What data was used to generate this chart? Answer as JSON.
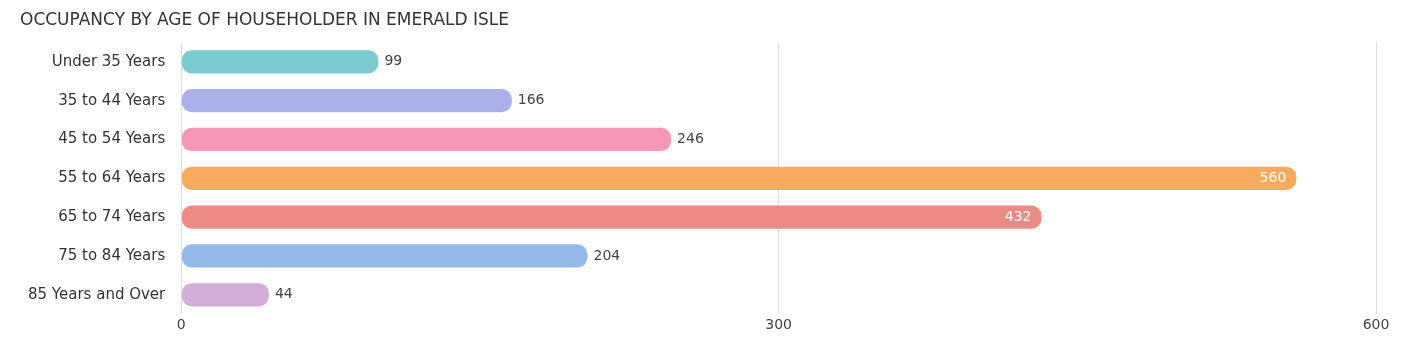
{
  "chart_data": {
    "type": "bar",
    "orientation": "horizontal",
    "title": "OCCUPANCY BY AGE OF HOUSEHOLDER IN EMERALD ISLE",
    "categories": [
      "Under 35 Years",
      "35 to 44 Years",
      "45 to 54 Years",
      "55 to 64 Years",
      "65 to 74 Years",
      "75 to 84 Years",
      "85 Years and Over"
    ],
    "values": [
      99,
      166,
      246,
      560,
      432,
      204,
      44
    ],
    "colors": [
      "#7ccbd1",
      "#aab0e8",
      "#f597b5",
      "#f9aa5c",
      "#ec8a84",
      "#93b9e9",
      "#d2afd6"
    ],
    "xlim": [
      0,
      600
    ],
    "xticks": [
      0,
      300,
      600
    ],
    "grid": "x",
    "data_labels": true,
    "legend": false
  }
}
